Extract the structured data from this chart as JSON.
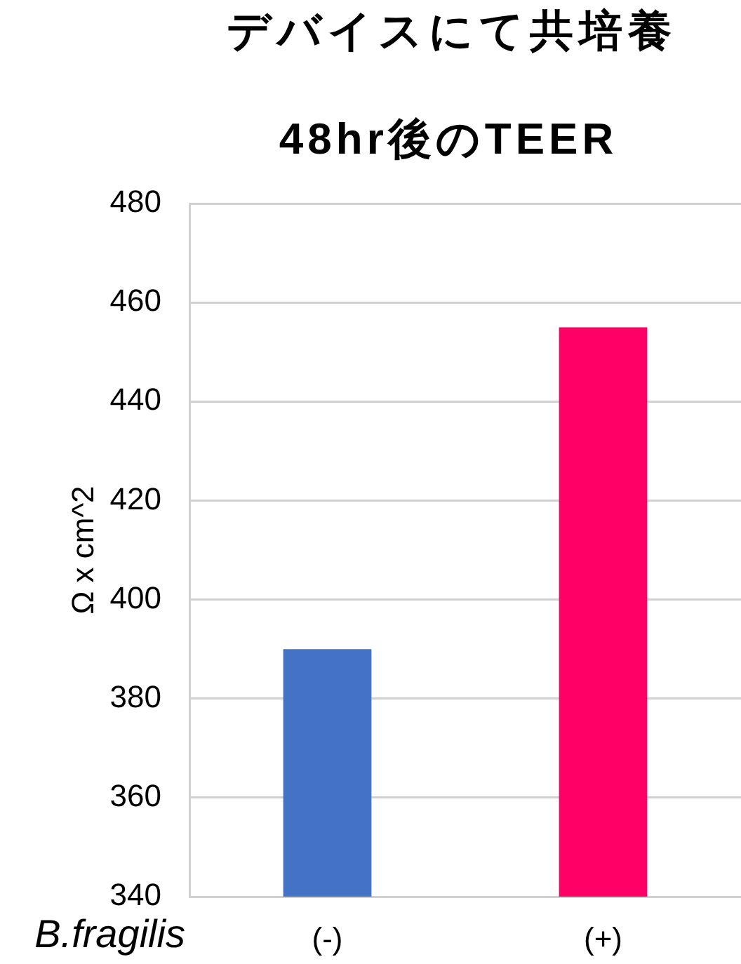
{
  "chart_data": {
    "type": "bar",
    "title": "デバイスにて共培養",
    "subtitle": "48hr後のTEER",
    "xlabel": "B.fragilis",
    "ylabel": "Ω x cm^2",
    "categories": [
      "(-)",
      "(+)"
    ],
    "values": [
      390,
      455
    ],
    "colors": [
      "#4472c4",
      "#ff0066"
    ],
    "ylim": [
      340,
      480
    ],
    "yticks": [
      340,
      360,
      380,
      400,
      420,
      440,
      460,
      480
    ],
    "grid": "y"
  }
}
